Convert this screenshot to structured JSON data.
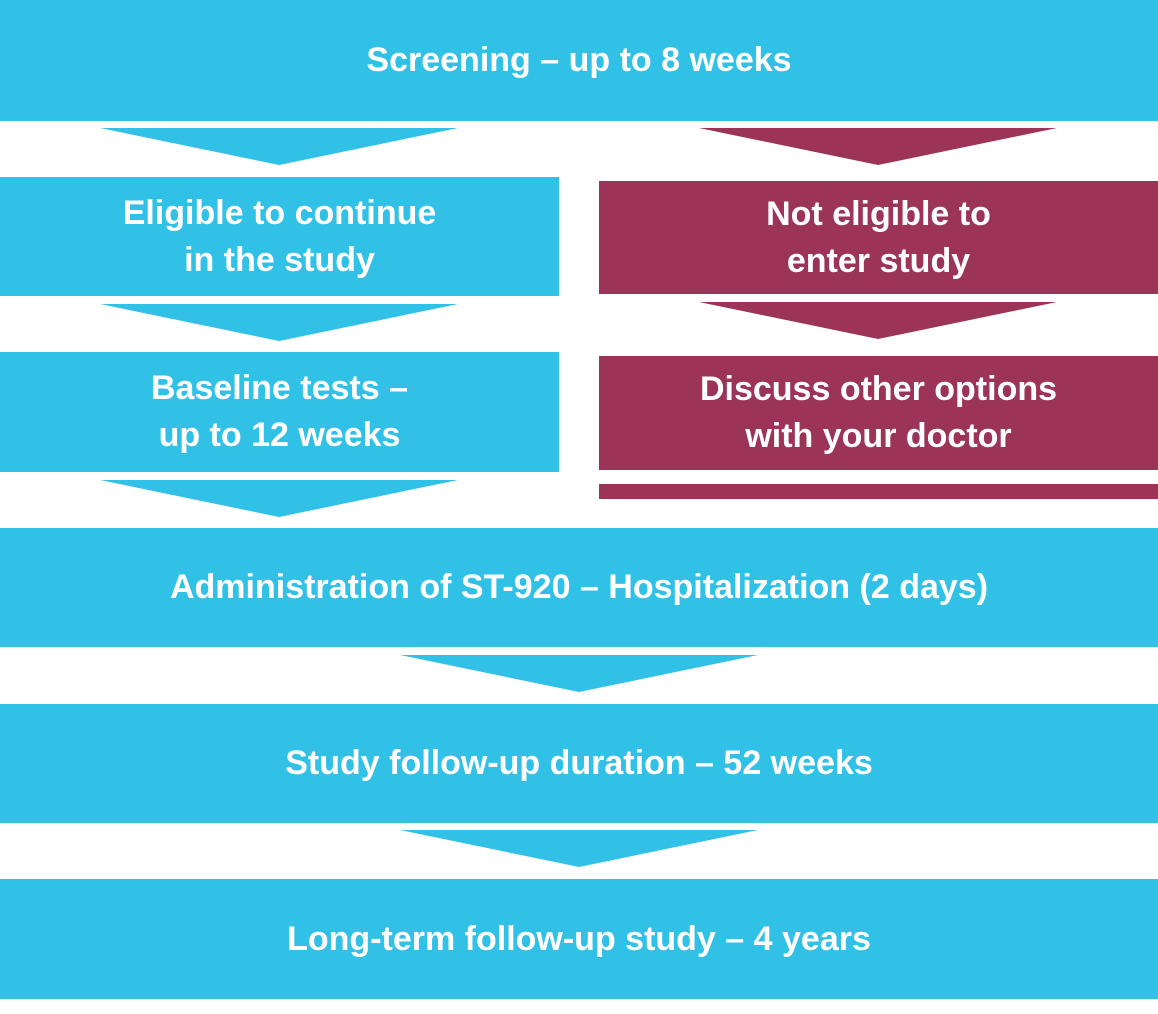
{
  "colors": {
    "primary": "#31c1e6",
    "alternate": "#9c3457",
    "background": "#ffffff"
  },
  "steps": {
    "screening": "Screening – up to 8 weeks",
    "eligible": {
      "line1": "Eligible to continue",
      "line2": "in the study"
    },
    "not_eligible": {
      "line1": "Not eligible to",
      "line2": "enter study"
    },
    "baseline": {
      "line1": "Baseline tests –",
      "line2": "up to 12 weeks"
    },
    "discuss": {
      "line1": "Discuss other options",
      "line2": "with your doctor"
    },
    "administration": "Administration of ST-920 – Hospitalization (2 days)",
    "follow_up": "Study follow-up duration – 52 weeks",
    "long_term": "Long-term follow-up study – 4 years"
  }
}
